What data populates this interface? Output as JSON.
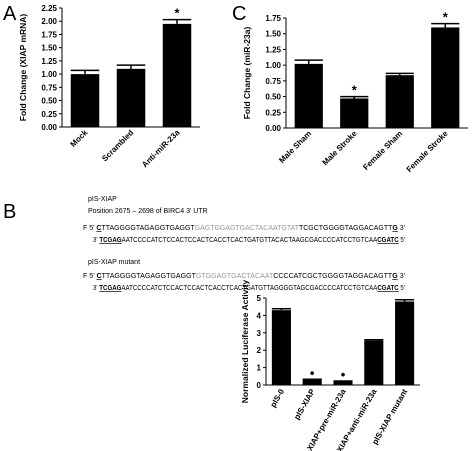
{
  "panel_labels": [
    "A",
    "B",
    "C"
  ],
  "chart_data": [
    {
      "type": "bar",
      "y_label": "Fold Change (XIAP mRNA)",
      "color": "#000000",
      "categories": [
        "Mock",
        "Scrambled",
        "Anti-miR-23a"
      ],
      "values": [
        1.0,
        1.1,
        1.95
      ],
      "errors": [
        0.07,
        0.07,
        0.08
      ],
      "markers": [
        null,
        null,
        "*"
      ],
      "ylim": [
        0,
        2.25
      ],
      "yticks": [
        {
          "value": 0,
          "label": "0.00"
        },
        {
          "value": 0.25,
          "label": "0.25"
        },
        {
          "value": 0.5,
          "label": "0.50"
        },
        {
          "value": 0.75,
          "label": "0.75"
        },
        {
          "value": 1,
          "label": "1.00"
        },
        {
          "value": 1.25,
          "label": "1.25"
        },
        {
          "value": 1.5,
          "label": "1.50"
        },
        {
          "value": 1.75,
          "label": "1.75"
        },
        {
          "value": 2,
          "label": "2.00"
        },
        {
          "value": 2.25,
          "label": "2.25"
        }
      ]
    },
    {
      "type": "bar",
      "y_label": "Fold Change (miR-23a)",
      "color": "#000000",
      "categories": [
        "Male Sham",
        "Male Stroke",
        "Female Sham",
        "Female Stroke"
      ],
      "values": [
        1.02,
        0.47,
        0.84,
        1.6
      ],
      "errors": [
        0.06,
        0.03,
        0.03,
        0.06
      ],
      "markers": [
        null,
        "*",
        null,
        "*"
      ],
      "ylim": [
        0,
        1.75
      ],
      "yticks": [
        {
          "value": 0,
          "label": "0.00"
        },
        {
          "value": 0.25,
          "label": "0.25"
        },
        {
          "value": 0.5,
          "label": "0.50"
        },
        {
          "value": 0.75,
          "label": "0.75"
        },
        {
          "value": 1,
          "label": "1.00"
        },
        {
          "value": 1.25,
          "label": "1.25"
        },
        {
          "value": 1.5,
          "label": "1.50"
        },
        {
          "value": 1.75,
          "label": "1.75"
        }
      ]
    },
    {
      "type": "bar",
      "y_label": "Normalized Luciferase Activity",
      "color": "#000000",
      "categories": [
        "pIS-0",
        "pIS-XIAP",
        "pIS-XIAP+pre-miR-23a",
        "pIS-XIAP+anti-miR-23a",
        "pIS-XIAP mutant"
      ],
      "values": [
        4.3,
        0.3,
        0.2,
        2.55,
        4.8
      ],
      "errors": [
        0.08,
        0.03,
        0.03,
        0.05,
        0.1
      ],
      "markers": [
        null,
        "•",
        "•",
        null,
        null
      ],
      "ylim": [
        0,
        5
      ],
      "yticks": [
        0,
        1,
        2,
        3,
        4,
        5
      ]
    }
  ],
  "sequence_panel": {
    "title": "pIS-XIAP",
    "position": "Position 2675 – 2698 of BIRC4 3' UTR",
    "mutant_title": "pIS-XIAP mutant",
    "rows": [
      {
        "prefix": "F 5'",
        "segments": [
          {
            "text": "C",
            "style": "bold-underline"
          },
          {
            "text": "TTAGGGGTAGAGGTGAGGT",
            "style": "plain"
          },
          {
            "text": "GAGTGGAGTGACTACAATGTAT",
            "style": "gray"
          },
          {
            "text": "TCGCTGGGGTAGGACAGTT",
            "style": "plain"
          },
          {
            "text": "G",
            "style": "bold-underline"
          }
        ],
        "suffix": "3'"
      },
      {
        "prefix": "3'",
        "segments": [
          {
            "text": "TCGAG",
            "style": "bold-underline"
          },
          {
            "text": "AATCCCCATCTCCACTCCACTCACCTCACTGATGTTACACTAAGCGACCCCATCCTGTCAA",
            "style": "plain"
          },
          {
            "text": "CGATC",
            "style": "bold-underline"
          }
        ],
        "suffix": "5'"
      },
      {
        "prefix": "F 5'",
        "segments": [
          {
            "text": "C",
            "style": "bold-underline"
          },
          {
            "text": "TTAGGGGTAGAGGTGAGGT",
            "style": "plain"
          },
          {
            "text": "GTGGAGTGACTACAAT",
            "style": "gray"
          },
          {
            "text": "CCCCATCGCTGGGGTAGGACAGTT",
            "style": "plain"
          },
          {
            "text": "G",
            "style": "bold-underline"
          }
        ],
        "suffix": "3'"
      },
      {
        "prefix": "3'",
        "segments": [
          {
            "text": "TCGAG",
            "style": "bold-underline"
          },
          {
            "text": "AATCCCCATCTCCACTCCACTCACCTCACTGATGTTAGGGGTAGCGACCCCATCCTGTCAA",
            "style": "plain"
          },
          {
            "text": "CGATC",
            "style": "bold-underline"
          }
        ],
        "suffix": "5'"
      }
    ]
  }
}
